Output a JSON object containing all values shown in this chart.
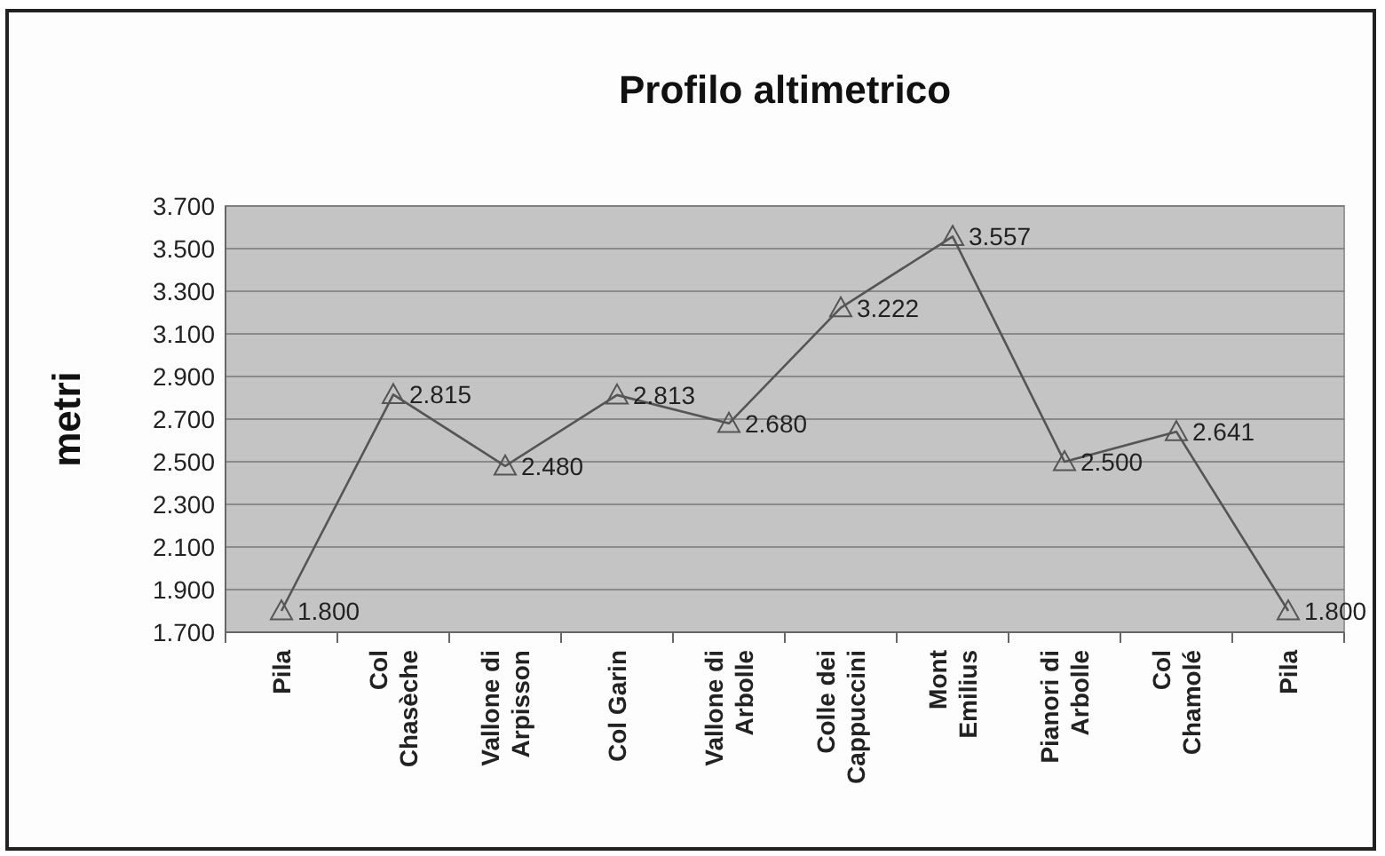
{
  "chart_data": {
    "type": "line",
    "title": "Profilo altimetrico",
    "ylabel": "metri",
    "categories": [
      "Pila",
      "Col Chasèche",
      "Vallone di Arpisson",
      "Col Garin",
      "Vallone di Arbolle",
      "Colle dei Cappuccini",
      "Mont Emilius",
      "Pianori di Arbolle",
      "Col Chamolé",
      "Pila"
    ],
    "series": [
      {
        "color": "#555555",
        "values": [
          1800,
          2815,
          2480,
          2813,
          2680,
          3222,
          3557,
          2500,
          2641,
          1800
        ],
        "value_labels": [
          "1.800",
          "2.815",
          "2.480",
          "2.813",
          "2.680",
          "3.222",
          "3.557",
          "2.500",
          "2.641",
          "1.800"
        ]
      }
    ],
    "ylim": [
      1700,
      3700
    ],
    "yticks": [
      {
        "value": 1700,
        "label": "1.700"
      },
      {
        "value": 1900,
        "label": "1.900"
      },
      {
        "value": 2100,
        "label": "2.100"
      },
      {
        "value": 2300,
        "label": "2.300"
      },
      {
        "value": 2500,
        "label": "2.500"
      },
      {
        "value": 2700,
        "label": "2.700"
      },
      {
        "value": 2900,
        "label": "2.900"
      },
      {
        "value": 3100,
        "label": "3.100"
      },
      {
        "value": 3300,
        "label": "3.300"
      },
      {
        "value": 3500,
        "label": "3.500"
      },
      {
        "value": 3700,
        "label": "3.700"
      }
    ],
    "grid": "y",
    "marker": "triangle",
    "line_style": "solid"
  }
}
